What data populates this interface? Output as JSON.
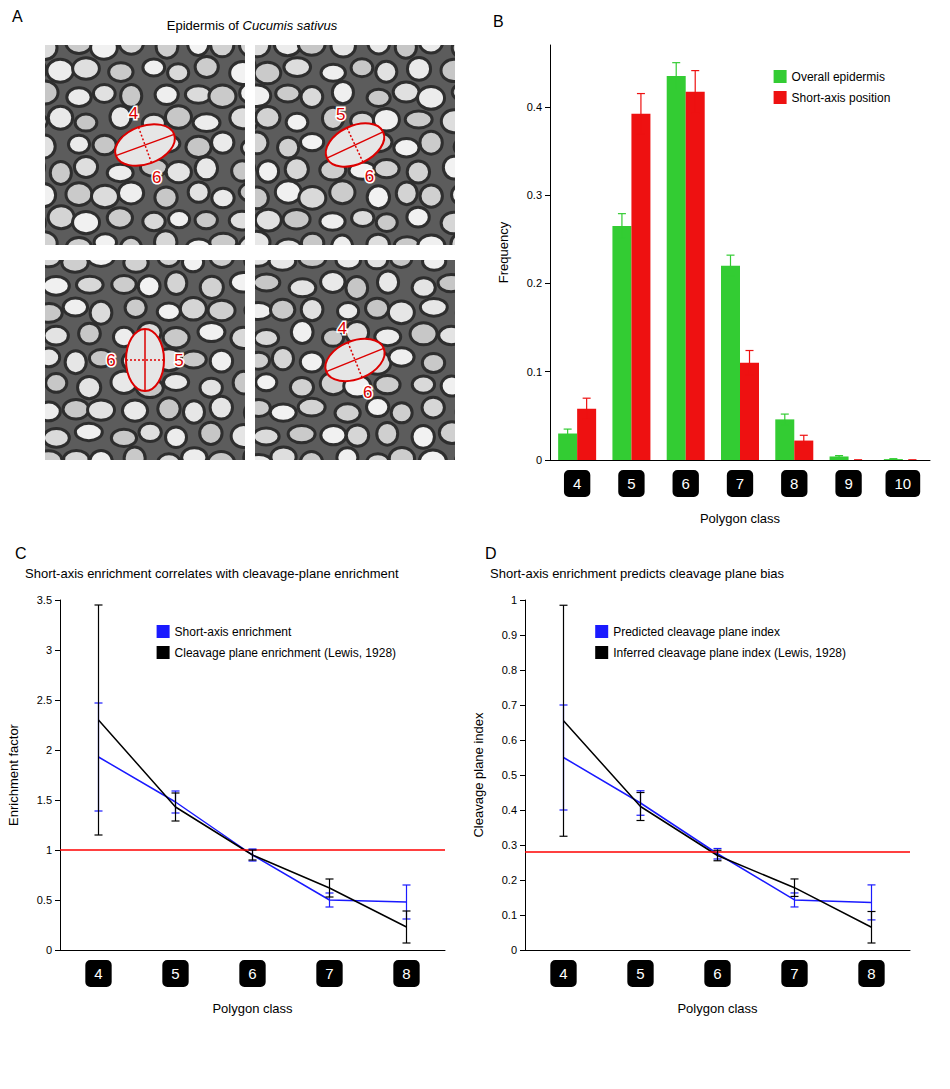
{
  "panel_a": {
    "panel": "A",
    "title": "Epidermis of Cucumis sativus",
    "images": [
      {
        "labels": [
          "4",
          "6"
        ]
      },
      {
        "labels": [
          "5",
          "6"
        ]
      },
      {
        "labels": [
          "6",
          "5"
        ]
      },
      {
        "labels": [
          "4",
          "6"
        ]
      }
    ]
  },
  "chart_data": [
    {
      "panel": "B",
      "type": "bar",
      "x_label": "Polygon class",
      "y_label": "Frequency",
      "categories": [
        "4",
        "5",
        "6",
        "7",
        "8",
        "9",
        "10"
      ],
      "series": [
        {
          "name": "Overall epidermis",
          "color": "#33cc33",
          "values": [
            0.03,
            0.265,
            0.435,
            0.22,
            0.046,
            0.004,
            0.001
          ],
          "errors": [
            0.005,
            0.014,
            0.015,
            0.012,
            0.006,
            0.001,
            0.0005
          ]
        },
        {
          "name": "Short-axis position",
          "color": "#ee1111",
          "values": [
            0.058,
            0.392,
            0.417,
            0.11,
            0.022,
            0,
            0
          ],
          "errors": [
            0.012,
            0.023,
            0.024,
            0.014,
            0.006,
            0,
            0
          ]
        }
      ],
      "ylim": [
        0,
        0.47
      ],
      "yticks": [
        0,
        0.1,
        0.2,
        0.3,
        0.4
      ],
      "grid": false,
      "legend": "top-right"
    },
    {
      "panel": "C",
      "type": "line",
      "title": "Short-axis enrichment correlates with cleavage-plane enrichment",
      "x_label": "Polygon class",
      "y_label": "Enrichment factor",
      "categories": [
        "4",
        "5",
        "6",
        "7",
        "8"
      ],
      "series": [
        {
          "name": "Short-axis enrichment",
          "color": "#1a1aff",
          "marker": "none",
          "values": [
            1.93,
            1.48,
            0.95,
            0.5,
            0.48
          ],
          "errors": [
            0.54,
            0.11,
            0.06,
            0.07,
            0.17
          ]
        },
        {
          "name": "Cleavage plane enrichment (Lewis, 1928)",
          "color": "#000000",
          "marker": "none",
          "values": [
            2.3,
            1.43,
            0.95,
            0.62,
            0.23
          ],
          "errors": [
            1.15,
            0.14,
            0.05,
            0.09,
            0.16
          ]
        }
      ],
      "reference": 1,
      "ylim": [
        0,
        3.5
      ],
      "yticks": [
        0,
        0.5,
        1,
        1.5,
        2,
        2.5,
        3,
        3.5
      ],
      "grid": false,
      "legend": "top-right"
    },
    {
      "panel": "D",
      "type": "line",
      "title": "Short-axis enrichment predicts cleavage plane bias",
      "x_label": "Polygon class",
      "y_label": "Cleavage plane index",
      "categories": [
        "4",
        "5",
        "6",
        "7",
        "8"
      ],
      "series": [
        {
          "name": "Predicted cleavage plane index",
          "color": "#1a1aff",
          "marker": "none",
          "values": [
            0.55,
            0.42,
            0.275,
            0.143,
            0.136
          ],
          "errors": [
            0.15,
            0.035,
            0.015,
            0.02,
            0.05
          ]
        },
        {
          "name": "Inferred cleavage plane index (Lewis, 1928)",
          "color": "#000000",
          "marker": "none",
          "values": [
            0.655,
            0.41,
            0.27,
            0.178,
            0.065
          ],
          "errors": [
            0.33,
            0.04,
            0.015,
            0.025,
            0.045
          ]
        }
      ],
      "reference": 0.285,
      "ylim": [
        0,
        1
      ],
      "yticks": [
        0,
        0.1,
        0.2,
        0.3,
        0.4,
        0.5,
        0.6,
        0.7,
        0.8,
        0.9,
        1
      ],
      "grid": false,
      "legend": "top-right"
    }
  ]
}
